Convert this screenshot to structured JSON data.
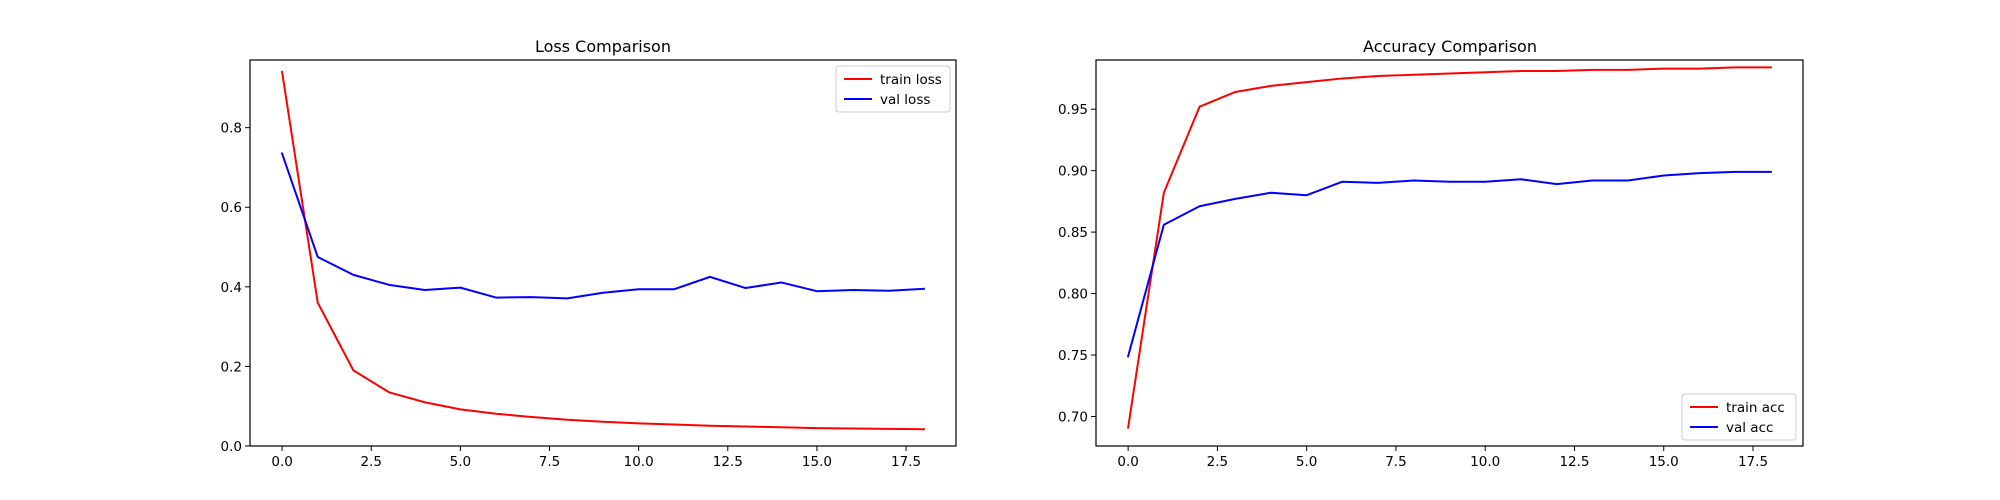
{
  "colors": {
    "train": "#ff0000",
    "val": "#0000ff"
  },
  "chart_data": [
    {
      "type": "line",
      "title": "Loss Comparison",
      "xlabel": "",
      "ylabel": "",
      "x": [
        0,
        1,
        2,
        3,
        4,
        5,
        6,
        7,
        8,
        9,
        10,
        11,
        12,
        13,
        14,
        15,
        16,
        17,
        18
      ],
      "xlim": [
        -0.9,
        18.9
      ],
      "ylim": [
        0,
        0.97
      ],
      "xticks": [
        0,
        2.5,
        5,
        7.5,
        10,
        12.5,
        15,
        17.5
      ],
      "xtick_labels": [
        "0.0",
        "2.5",
        "5.0",
        "7.5",
        "10.0",
        "12.5",
        "15.0",
        "17.5"
      ],
      "yticks": [
        0,
        0.2,
        0.4,
        0.6,
        0.8
      ],
      "ytick_labels": [
        "0.0",
        "0.2",
        "0.4",
        "0.6",
        "0.8"
      ],
      "grid": false,
      "legend_position": "top-right",
      "series": [
        {
          "name": "train loss",
          "color": "#ff0000",
          "values": [
            0.94,
            0.36,
            0.19,
            0.135,
            0.11,
            0.092,
            0.081,
            0.073,
            0.066,
            0.061,
            0.057,
            0.054,
            0.051,
            0.049,
            0.047,
            0.045,
            0.044,
            0.043,
            0.042
          ]
        },
        {
          "name": "val loss",
          "color": "#0000ff",
          "values": [
            0.735,
            0.475,
            0.43,
            0.405,
            0.392,
            0.398,
            0.373,
            0.374,
            0.371,
            0.385,
            0.394,
            0.394,
            0.425,
            0.397,
            0.411,
            0.389,
            0.392,
            0.39,
            0.395
          ]
        }
      ]
    },
    {
      "type": "line",
      "title": "Accuracy Comparison",
      "xlabel": "",
      "ylabel": "",
      "x": [
        0,
        1,
        2,
        3,
        4,
        5,
        6,
        7,
        8,
        9,
        10,
        11,
        12,
        13,
        14,
        15,
        16,
        17,
        18
      ],
      "xlim": [
        -0.9,
        18.9
      ],
      "ylim": [
        0.676,
        0.99
      ],
      "xticks": [
        0,
        2.5,
        5,
        7.5,
        10,
        12.5,
        15,
        17.5
      ],
      "xtick_labels": [
        "0.0",
        "2.5",
        "5.0",
        "7.5",
        "10.0",
        "12.5",
        "15.0",
        "17.5"
      ],
      "yticks": [
        0.7,
        0.75,
        0.8,
        0.85,
        0.9,
        0.95
      ],
      "ytick_labels": [
        "0.70",
        "0.75",
        "0.80",
        "0.85",
        "0.90",
        "0.95"
      ],
      "grid": false,
      "legend_position": "bottom-right",
      "series": [
        {
          "name": "train acc",
          "color": "#ff0000",
          "values": [
            0.691,
            0.882,
            0.952,
            0.964,
            0.969,
            0.972,
            0.975,
            0.977,
            0.978,
            0.979,
            0.98,
            0.981,
            0.981,
            0.982,
            0.982,
            0.983,
            0.983,
            0.984,
            0.984
          ]
        },
        {
          "name": "val acc",
          "color": "#0000ff",
          "values": [
            0.749,
            0.856,
            0.871,
            0.877,
            0.882,
            0.88,
            0.891,
            0.89,
            0.892,
            0.891,
            0.891,
            0.893,
            0.889,
            0.892,
            0.892,
            0.896,
            0.898,
            0.899,
            0.899
          ]
        }
      ]
    }
  ]
}
